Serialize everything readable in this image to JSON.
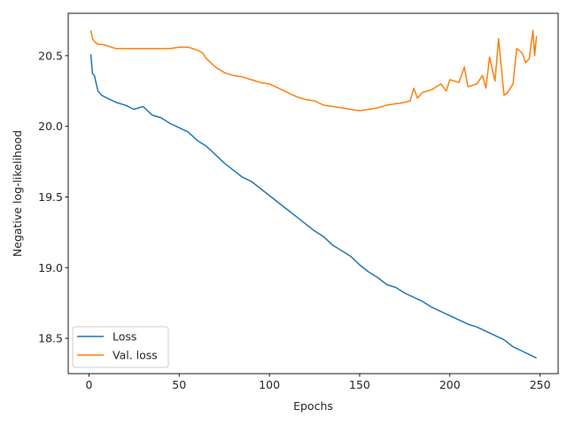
{
  "chart_data": {
    "type": "line",
    "title": "",
    "xlabel": "Epochs",
    "ylabel": "Negative log-likelihood",
    "xlim": [
      -11.5,
      260
    ],
    "ylim": [
      18.25,
      20.8
    ],
    "xticks": [
      0,
      50,
      100,
      150,
      200,
      250
    ],
    "yticks": [
      18.5,
      19.0,
      19.5,
      20.0,
      20.5
    ],
    "xtick_labels": [
      "0",
      "50",
      "100",
      "150",
      "200",
      "250"
    ],
    "ytick_labels": [
      "18.5",
      "19.0",
      "19.5",
      "20.0",
      "20.5"
    ],
    "grid": false,
    "legend": {
      "placement": "lower-left",
      "entries": [
        "Loss",
        "Val. loss"
      ]
    },
    "series": [
      {
        "name": "Loss",
        "color": "#1f77b4",
        "x": [
          1,
          2,
          3,
          5,
          7,
          10,
          15,
          20,
          25,
          30,
          35,
          40,
          45,
          50,
          55,
          60,
          65,
          70,
          75,
          80,
          85,
          90,
          95,
          100,
          105,
          110,
          115,
          120,
          125,
          130,
          135,
          140,
          145,
          150,
          155,
          160,
          165,
          170,
          175,
          180,
          185,
          190,
          195,
          200,
          205,
          210,
          215,
          220,
          225,
          230,
          235,
          240,
          245,
          248
        ],
        "y": [
          20.51,
          20.37,
          20.36,
          20.25,
          20.22,
          20.2,
          20.17,
          20.15,
          20.12,
          20.14,
          20.08,
          20.06,
          20.02,
          19.99,
          19.96,
          19.9,
          19.86,
          19.8,
          19.74,
          19.69,
          19.64,
          19.61,
          19.56,
          19.51,
          19.46,
          19.41,
          19.36,
          19.31,
          19.26,
          19.22,
          19.16,
          19.12,
          19.08,
          19.02,
          18.97,
          18.93,
          18.88,
          18.86,
          18.82,
          18.79,
          18.76,
          18.72,
          18.69,
          18.66,
          18.63,
          18.6,
          18.58,
          18.55,
          18.52,
          18.49,
          18.44,
          18.41,
          18.38,
          18.36
        ]
      },
      {
        "name": "Val. loss",
        "color": "#ff7f0e",
        "x": [
          1,
          2,
          3,
          5,
          7,
          10,
          15,
          20,
          25,
          30,
          35,
          40,
          45,
          50,
          55,
          60,
          63,
          65,
          70,
          75,
          80,
          85,
          90,
          95,
          100,
          105,
          110,
          115,
          120,
          125,
          130,
          135,
          140,
          145,
          150,
          155,
          160,
          165,
          170,
          175,
          178,
          180,
          182,
          185,
          190,
          195,
          198,
          200,
          205,
          208,
          210,
          215,
          218,
          220,
          222,
          225,
          227,
          230,
          232,
          235,
          237,
          240,
          242,
          244,
          246,
          247,
          248
        ],
        "y": [
          20.68,
          20.62,
          20.6,
          20.58,
          20.58,
          20.57,
          20.55,
          20.55,
          20.55,
          20.55,
          20.55,
          20.55,
          20.55,
          20.56,
          20.56,
          20.54,
          20.52,
          20.48,
          20.42,
          20.38,
          20.36,
          20.35,
          20.33,
          20.31,
          20.3,
          20.27,
          20.24,
          20.21,
          20.19,
          20.18,
          20.15,
          20.14,
          20.13,
          20.12,
          20.11,
          20.12,
          20.13,
          20.15,
          20.16,
          20.17,
          20.18,
          20.27,
          20.2,
          20.24,
          20.26,
          20.3,
          20.25,
          20.33,
          20.31,
          20.42,
          20.28,
          20.3,
          20.36,
          20.27,
          20.49,
          20.32,
          20.62,
          20.22,
          20.24,
          20.3,
          20.55,
          20.52,
          20.45,
          20.48,
          20.68,
          20.5,
          20.64
        ]
      }
    ]
  }
}
